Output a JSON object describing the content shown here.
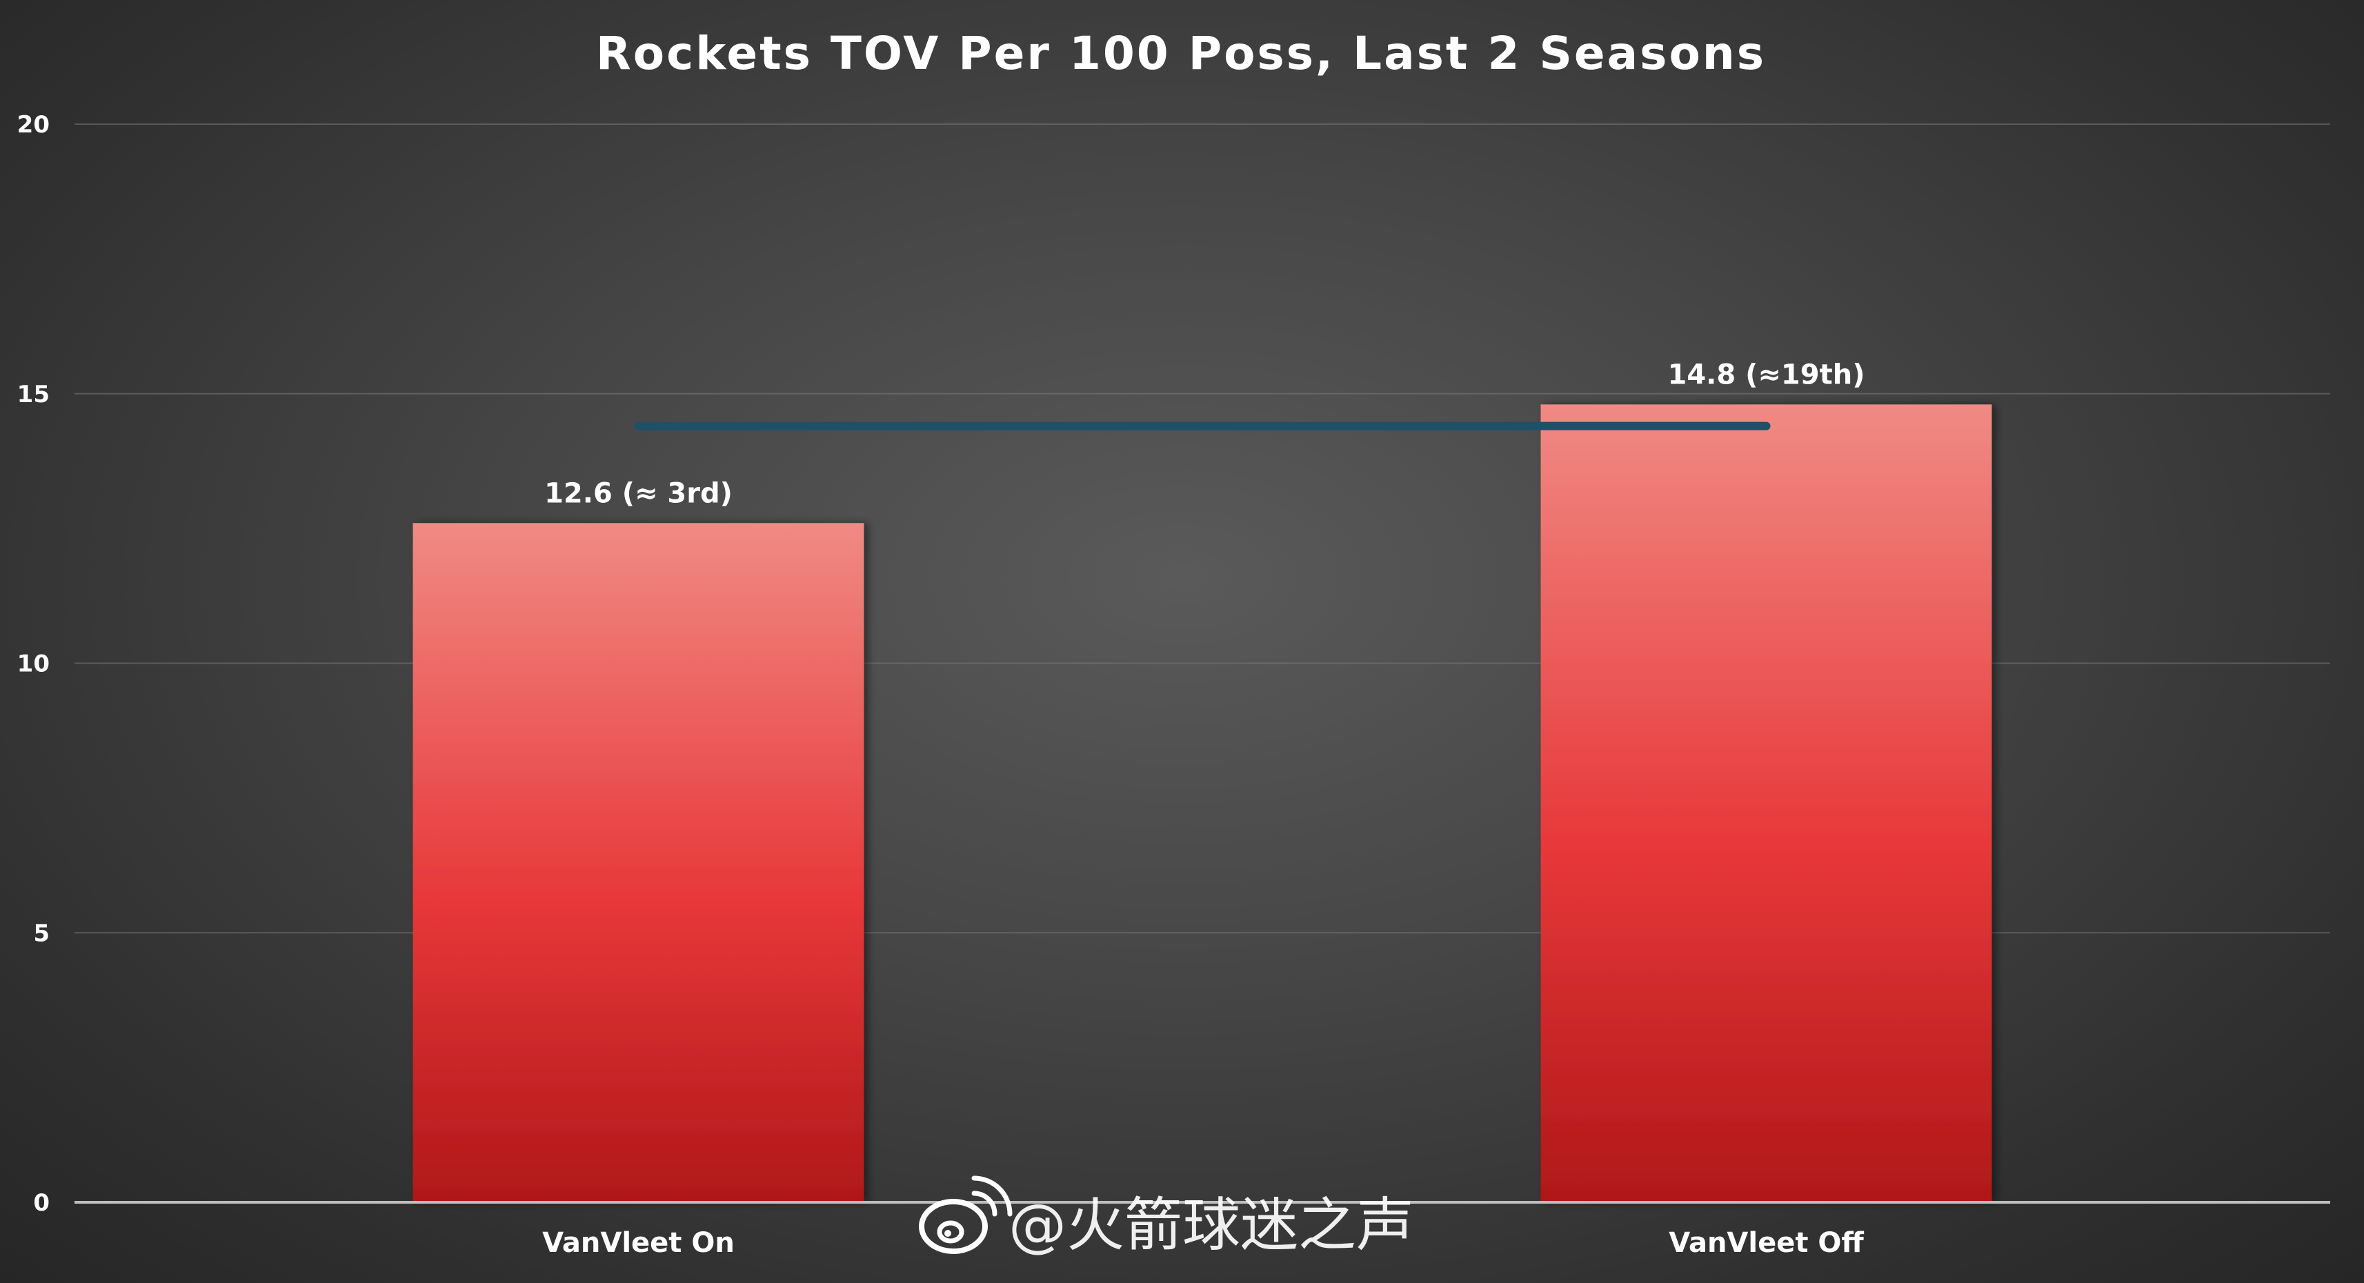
{
  "chart_data": {
    "type": "bar",
    "title": "Rockets TOV Per 100 Poss, Last 2 Seasons",
    "xlabel": "",
    "ylabel": "",
    "categories": [
      "VanVleet On",
      "VanVleet Off"
    ],
    "values": [
      12.6,
      14.8
    ],
    "data_labels": [
      "12.6 (≈ 3rd)",
      "14.8 (≈19th)"
    ],
    "ylim": [
      0,
      20
    ],
    "yticks": [
      0,
      5,
      10,
      15,
      20
    ],
    "reference_line": {
      "value": 14.4,
      "color": "#1e5068"
    },
    "grid": true,
    "legend": "none",
    "bar_color_top": "#f08a84",
    "bar_color_mid": "#e8383a",
    "bar_color_bottom": "#b01818"
  },
  "watermark": {
    "text": "@火箭球迷之声",
    "icon": "weibo-icon"
  }
}
